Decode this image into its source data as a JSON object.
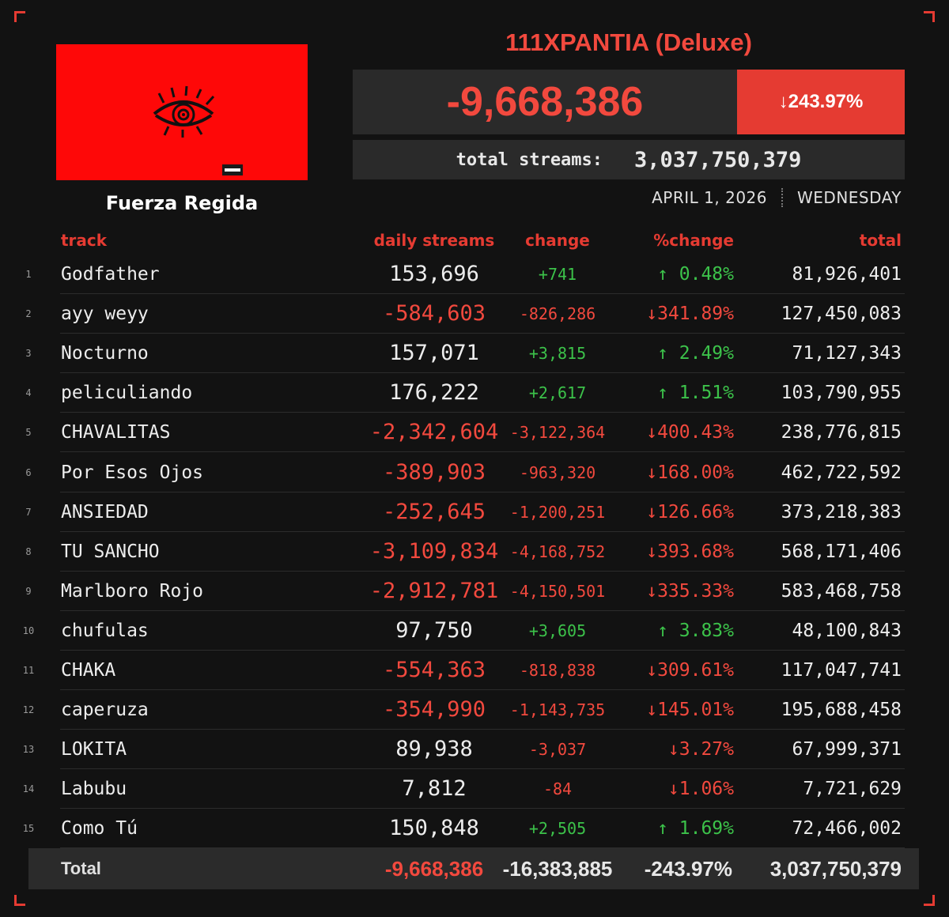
{
  "album": {
    "title": "111XPANTIA (Deluxe)",
    "artist": "Fuerza Regida",
    "daily_streams": "-9,668,386",
    "percent_change": "↓243.97%",
    "total_label": "total streams:",
    "total_streams": "3,037,750,379",
    "date": "APRIL 1, 2026",
    "weekday": "WEDNESDAY"
  },
  "colors": {
    "accent": "#e53b32",
    "cover": "#fe0808",
    "positive": "#3cc24a",
    "negative": "#f2493e"
  },
  "table": {
    "headers": {
      "track": "track",
      "daily": "daily streams",
      "change": "change",
      "pchange": "%change",
      "total": "total"
    },
    "rows": [
      {
        "rank": "1",
        "track": "Godfather",
        "daily": "153,696",
        "change": "+741",
        "pchange": "↑ 0.48%",
        "total": "81,926,401",
        "up": true
      },
      {
        "rank": "2",
        "track": "ayy weyy",
        "daily": "-584,603",
        "change": "-826,286",
        "pchange": "↓341.89%",
        "total": "127,450,083",
        "up": false
      },
      {
        "rank": "3",
        "track": "Nocturno",
        "daily": "157,071",
        "change": "+3,815",
        "pchange": "↑ 2.49%",
        "total": "71,127,343",
        "up": true
      },
      {
        "rank": "4",
        "track": "peliculiando",
        "daily": "176,222",
        "change": "+2,617",
        "pchange": "↑ 1.51%",
        "total": "103,790,955",
        "up": true
      },
      {
        "rank": "5",
        "track": "CHAVALITAS",
        "daily": "-2,342,604",
        "change": "-3,122,364",
        "pchange": "↓400.43%",
        "total": "238,776,815",
        "up": false
      },
      {
        "rank": "6",
        "track": "Por Esos Ojos",
        "daily": "-389,903",
        "change": "-963,320",
        "pchange": "↓168.00%",
        "total": "462,722,592",
        "up": false
      },
      {
        "rank": "7",
        "track": "ANSIEDAD",
        "daily": "-252,645",
        "change": "-1,200,251",
        "pchange": "↓126.66%",
        "total": "373,218,383",
        "up": false
      },
      {
        "rank": "8",
        "track": "TU SANCHO",
        "daily": "-3,109,834",
        "change": "-4,168,752",
        "pchange": "↓393.68%",
        "total": "568,171,406",
        "up": false
      },
      {
        "rank": "9",
        "track": "Marlboro Rojo",
        "daily": "-2,912,781",
        "change": "-4,150,501",
        "pchange": "↓335.33%",
        "total": "583,468,758",
        "up": false
      },
      {
        "rank": "10",
        "track": "chufulas",
        "daily": "97,750",
        "change": "+3,605",
        "pchange": "↑ 3.83%",
        "total": "48,100,843",
        "up": true
      },
      {
        "rank": "11",
        "track": "CHAKA",
        "daily": "-554,363",
        "change": "-818,838",
        "pchange": "↓309.61%",
        "total": "117,047,741",
        "up": false
      },
      {
        "rank": "12",
        "track": "caperuza",
        "daily": "-354,990",
        "change": "-1,143,735",
        "pchange": "↓145.01%",
        "total": "195,688,458",
        "up": false
      },
      {
        "rank": "13",
        "track": "LOKITA",
        "daily": "89,938",
        "change": "-3,037",
        "pchange": "↓3.27%",
        "total": "67,999,371",
        "up": false,
        "daily_white": true
      },
      {
        "rank": "14",
        "track": "Labubu",
        "daily": "7,812",
        "change": "-84",
        "pchange": "↓1.06%",
        "total": "7,721,629",
        "up": false,
        "daily_white": true
      },
      {
        "rank": "15",
        "track": "Como Tú",
        "daily": "150,848",
        "change": "+2,505",
        "pchange": "↑ 1.69%",
        "total": "72,466,002",
        "up": true
      }
    ],
    "totals": {
      "label": "Total",
      "daily": "-9,668,386",
      "change": "-16,383,885",
      "pchange": "-243.97%",
      "total": "3,037,750,379"
    }
  }
}
